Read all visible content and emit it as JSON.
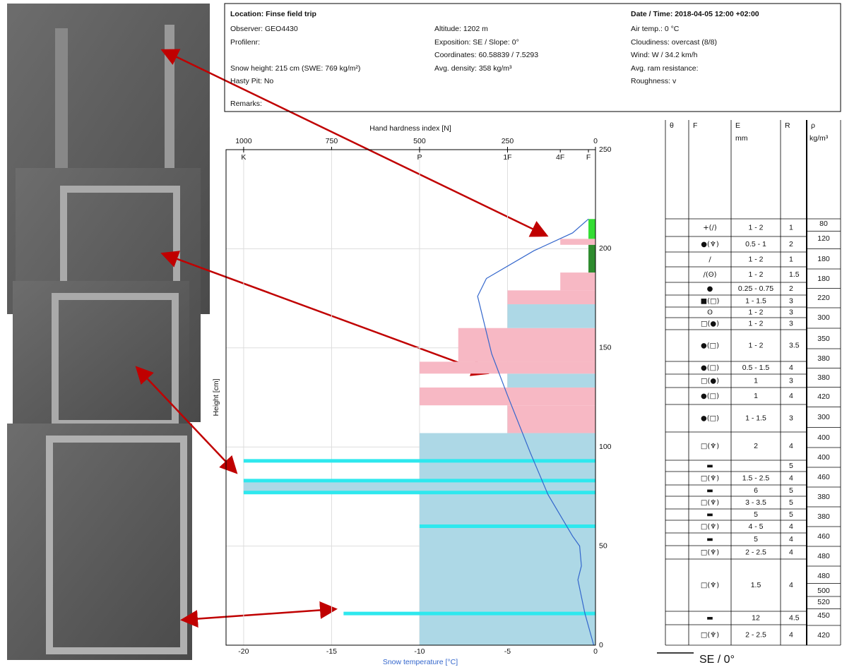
{
  "header": {
    "location": "Location: Finse field trip",
    "observer": "Observer: GEO4430",
    "profile": "Profilenr:",
    "snow_height": "Snow height: 215 cm (SWE: 769 kg/m²)",
    "hasty_pit": "Hasty Pit: No",
    "remarks": "Remarks:",
    "altitude": "Altitude: 1202 m",
    "exposition": "Exposition: SE / Slope: 0°",
    "coordinates": "Coordinates: 60.58839 / 7.5293",
    "avg_density": "Avg. density: 358 kg/m³",
    "datetime": "Date / Time: 2018-04-05 12:00 +02:00",
    "air_temp": "Air temp.: 0 °C",
    "cloudiness": "Cloudiness: overcast (8/8)",
    "wind": "Wind: W / 34.2 km/h",
    "ram": "Avg. ram resistance:",
    "roughness": "Roughness:   v"
  },
  "chart_data": {
    "type": "snowprofile",
    "x2label": "Hand hardness index [N]",
    "xlabel": "Snow temperature [°C]",
    "ylabel": "Height [cm]",
    "xlim": [
      -21,
      0
    ],
    "xticks": [
      -20,
      -15,
      -10,
      -5,
      0
    ],
    "x2lim": [
      1050,
      0
    ],
    "x2ticks": [
      1000,
      750,
      500,
      250,
      0
    ],
    "hand_ticks": [
      {
        "value": 1000,
        "label": "K"
      },
      {
        "value": 500,
        "label": "P"
      },
      {
        "value": 250,
        "label": "1F"
      },
      {
        "value": 100,
        "label": "4F"
      },
      {
        "value": 20,
        "label": "F"
      }
    ],
    "ylim": [
      0,
      250
    ],
    "yticks": [
      0,
      50,
      100,
      150,
      200,
      250
    ],
    "grid": true,
    "layers": {
      "bottom": [
        0,
        77,
        83,
        107,
        121,
        130,
        137,
        143,
        160,
        172,
        179,
        188,
        202,
        205
      ],
      "top": [
        77,
        83,
        107,
        121,
        130,
        137,
        143,
        160,
        172,
        179,
        188,
        202,
        205,
        215
      ],
      "hardness": [
        500,
        1000,
        500,
        250,
        500,
        250,
        500,
        390,
        250,
        250,
        100,
        20,
        100,
        20
      ],
      "color": [
        "#add8e6",
        "#add8e6",
        "#add8e6",
        "#f7b8c4",
        "#f7b8c4",
        "#add8e6",
        "#f7b8c4",
        "#f7b8c4",
        "#add8e6",
        "#f7b8c4",
        "#f7b8c4",
        "#2e8b2e",
        "#f7b8c4",
        "#33dd33"
      ]
    },
    "ice_layers": {
      "height": [
        16,
        60,
        77,
        83,
        93
      ],
      "hardness": [
        716,
        500,
        1000,
        1000,
        1000
      ],
      "color": "#2ee8ee"
    },
    "temperature": {
      "height": [
        0,
        16,
        33,
        40,
        50,
        55,
        76,
        97,
        126,
        147,
        176,
        185,
        199,
        208,
        215
      ],
      "temp": [
        -0.1,
        -0.6,
        -1.0,
        -0.8,
        -0.9,
        -1.3,
        -2.7,
        -3.7,
        -5.0,
        -5.9,
        -6.7,
        -6.2,
        -3.5,
        -1.3,
        -0.4
      ],
      "color": "#3366cc"
    }
  },
  "table": {
    "headers": [
      "θ",
      "F",
      "E",
      "R",
      "ρ"
    ],
    "e_unit": "mm",
    "rho_unit": "kg/m³",
    "rows": [
      [
        "+(/)",
        "1 - 2",
        1
      ],
      [
        "●(♆)",
        "0.5 - 1",
        2
      ],
      [
        "/",
        "1 - 2",
        1
      ],
      [
        "/(ʘ)",
        "1 - 2",
        1.5
      ],
      [
        "●",
        "0.25 - 0.75",
        2
      ],
      [
        "■(□)",
        "1 - 1.5",
        3
      ],
      [
        "ʘ",
        "1 - 2",
        3
      ],
      [
        "□(●)",
        "1 - 2",
        3
      ],
      [
        "●(□)",
        "1 - 2",
        3.5
      ],
      [
        "●(□)",
        "0.5 - 1.5",
        4
      ],
      [
        "□(●)",
        "1",
        3
      ],
      [
        "●(□)",
        "1",
        4
      ],
      [
        "●(□)",
        "1 - 1.5",
        3
      ],
      [
        "□(♆)",
        "2",
        4
      ],
      [
        "▬",
        null,
        5
      ],
      [
        "□(♆)",
        "1.5 - 2.5",
        4
      ],
      [
        "▬",
        "6",
        5
      ],
      [
        "□(♆)",
        "3 - 3.5",
        5
      ],
      [
        "▬",
        "5",
        5
      ],
      [
        "□(♆)",
        "4 - 5",
        4
      ],
      [
        "▬",
        "5",
        4
      ],
      [
        "□(♆)",
        "2 - 2.5",
        4
      ],
      [
        "□(♆)",
        "1.5",
        4
      ],
      [
        "▬",
        "12",
        4.5
      ],
      [
        "□(♆)",
        "2 - 2.5",
        4
      ]
    ],
    "density": [
      80,
      120,
      180,
      180,
      220,
      300,
      350,
      380,
      380,
      420,
      300,
      400,
      400,
      460,
      380,
      380,
      460,
      480,
      480,
      500,
      520,
      450,
      420
    ]
  },
  "aspect_label": "SE / 0°"
}
